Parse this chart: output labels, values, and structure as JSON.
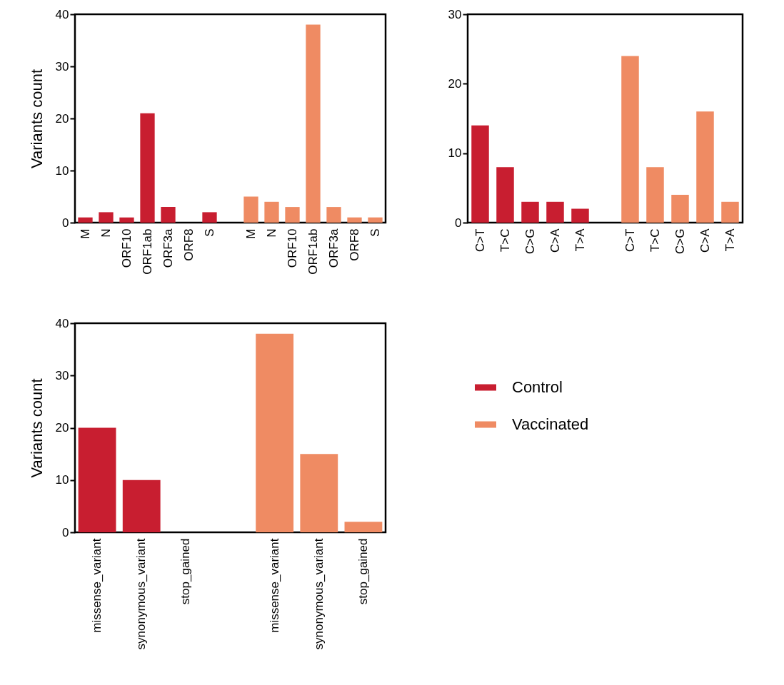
{
  "chart_data": [
    {
      "type": "bar",
      "ylabel": "Variants count",
      "categories": [
        "M",
        "N",
        "ORF10",
        "ORF1ab",
        "ORF3a",
        "ORF8",
        "S",
        null,
        "M",
        "N",
        "ORF10",
        "ORF1ab",
        "ORF3a",
        "ORF8",
        "S"
      ],
      "ylim": [
        0,
        40
      ],
      "yticks": [
        0,
        10,
        20,
        30,
        40
      ],
      "grid": false,
      "series": [
        {
          "color": "#c81e30",
          "values": [
            1,
            2,
            1,
            21,
            3,
            0,
            2,
            null,
            null,
            null,
            null,
            null,
            null,
            null,
            null
          ]
        },
        {
          "color": "#ef8b63",
          "values": [
            null,
            null,
            null,
            null,
            null,
            null,
            null,
            null,
            5,
            4,
            3,
            38,
            3,
            1,
            1
          ]
        }
      ]
    },
    {
      "type": "bar",
      "categories": [
        "C>T",
        "T>C",
        "C>G",
        "C>A",
        "T>A",
        null,
        "C>T",
        "T>C",
        "C>G",
        "C>A",
        "T>A"
      ],
      "ylim": [
        0,
        30
      ],
      "yticks": [
        0,
        10,
        20,
        30
      ],
      "grid": false,
      "series": [
        {
          "color": "#c81e30",
          "values": [
            14,
            8,
            3,
            3,
            2,
            null,
            null,
            null,
            null,
            null,
            null
          ]
        },
        {
          "color": "#ef8b63",
          "values": [
            null,
            null,
            null,
            null,
            null,
            null,
            24,
            8,
            4,
            16,
            3
          ]
        }
      ]
    },
    {
      "type": "bar",
      "ylabel": "Variants count",
      "categories": [
        "missense_variant",
        "synonymous_variant",
        "stop_gained",
        null,
        "missense_variant",
        "synonymous_variant",
        "stop_gained"
      ],
      "ylim": [
        0,
        40
      ],
      "yticks": [
        0,
        10,
        20,
        30,
        40
      ],
      "grid": false,
      "legend": "right",
      "series": [
        {
          "name": "Control",
          "color": "#c81e30",
          "values": [
            20,
            10,
            0,
            null,
            null,
            null,
            null
          ]
        },
        {
          "name": "Vaccinated",
          "color": "#ef8b63",
          "values": [
            null,
            null,
            null,
            null,
            38,
            15,
            2
          ]
        }
      ]
    }
  ]
}
